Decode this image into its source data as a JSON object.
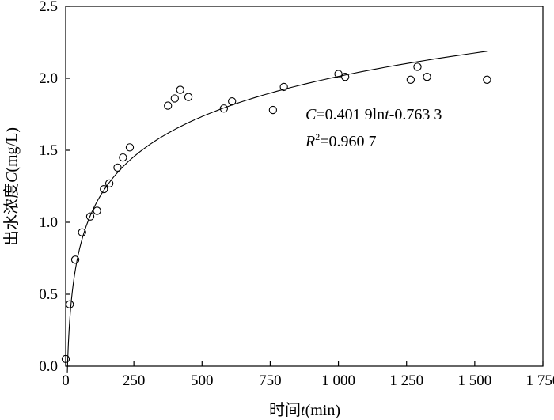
{
  "chart_data": {
    "type": "scatter",
    "title": "",
    "xlabel": "时间t(min)",
    "ylabel": "出水浓度C(mg/L)",
    "xlabel_parts": {
      "prefix": "时间",
      "var": "t",
      "suffix": "(min)"
    },
    "ylabel_parts": {
      "prefix": "出水浓度",
      "var": "C",
      "suffix": "(mg/L)"
    },
    "xlim": [
      0,
      1750
    ],
    "ylim": [
      0,
      2.5
    ],
    "x_ticks": [
      0,
      250,
      500,
      750,
      1000,
      1250,
      1500,
      1750
    ],
    "x_tick_labels": [
      "0",
      "250",
      "500",
      "750",
      "1 000",
      "1 250",
      "1 500",
      "1 750"
    ],
    "y_ticks": [
      0.0,
      0.5,
      1.0,
      1.5,
      2.0,
      2.5
    ],
    "y_tick_labels": [
      "0.0",
      "0.5",
      "1.0",
      "1.5",
      "2.0",
      "2.5"
    ],
    "grid": false,
    "series": [
      {
        "type": "scatter",
        "marker": "open-circle",
        "x": [
          0,
          15,
          35,
          60,
          90,
          115,
          140,
          160,
          190,
          210,
          235,
          375,
          400,
          420,
          450,
          580,
          610,
          760,
          800,
          1000,
          1025,
          1265,
          1290,
          1325,
          1545
        ],
        "y": [
          0.05,
          0.43,
          0.74,
          0.93,
          1.04,
          1.08,
          1.23,
          1.27,
          1.38,
          1.45,
          1.52,
          1.81,
          1.86,
          1.92,
          1.87,
          1.79,
          1.84,
          1.78,
          1.94,
          2.03,
          2.01,
          1.99,
          2.08,
          2.01,
          1.99
        ]
      },
      {
        "type": "line",
        "fit": "log",
        "coef_a": 0.4019,
        "coef_b": -0.7633,
        "x_range": [
          6,
          1545
        ]
      }
    ],
    "annotations": {
      "equation": {
        "c_var": "C",
        "eq_mid": "=0.401 9ln",
        "t_var": "t",
        "eq_end": "-0.763 3"
      },
      "r2": {
        "r_var": "R",
        "sup": "2",
        "value": "=0.960 7"
      }
    }
  }
}
